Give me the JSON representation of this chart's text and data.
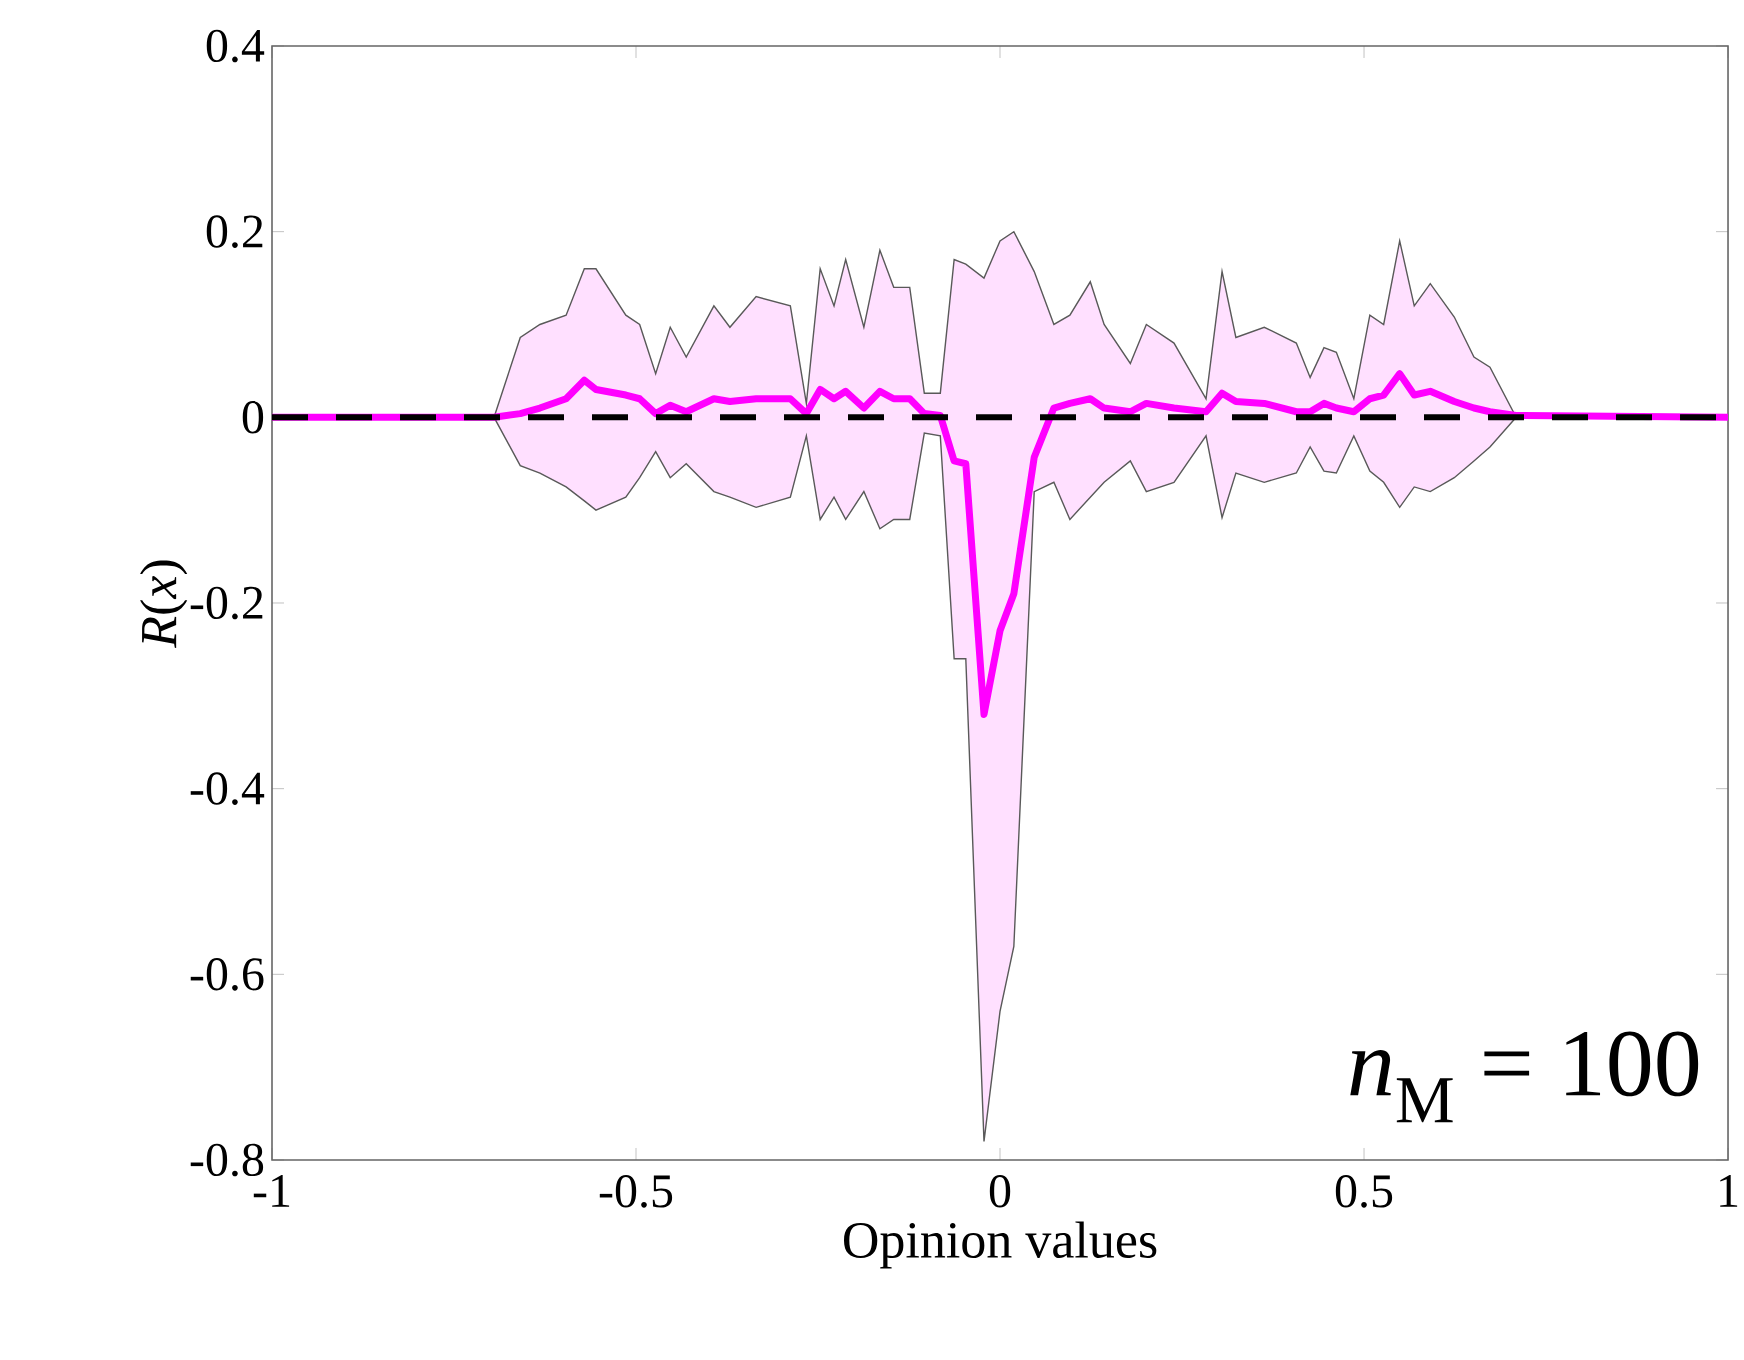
{
  "chart_data": {
    "type": "line",
    "xlabel": "Opinion values",
    "ylabel": "*R*(*x*)",
    "xlim": [
      -1,
      1
    ],
    "xticks": [
      -1,
      -0.5,
      0,
      0.5,
      1
    ],
    "ylim": [
      -0.8,
      0.4
    ],
    "yticks": [
      -0.8,
      -0.6,
      -0.4,
      -0.2,
      0,
      0.2,
      0.4
    ],
    "ref_lines": [
      {
        "axis": "y",
        "value": 0,
        "color": "#000000",
        "line_style": "dashed"
      }
    ],
    "annotations": [
      "*n*$_{M}$ = 100"
    ],
    "series": [
      {
        "color": "#ff00ff",
        "x": [
          -1,
          -0.695,
          -0.659,
          -0.632,
          -0.596,
          -0.571,
          -0.555,
          -0.514,
          -0.495,
          -0.473,
          -0.453,
          -0.431,
          -0.393,
          -0.371,
          -0.335,
          -0.288,
          -0.266,
          -0.247,
          -0.228,
          -0.212,
          -0.187,
          -0.165,
          -0.146,
          -0.124,
          -0.104,
          -0.082,
          -0.063,
          -0.047,
          -0.022,
          0,
          0.019,
          0.047,
          0.074,
          0.096,
          0.124,
          0.143,
          0.179,
          0.201,
          0.239,
          0.283,
          0.305,
          0.324,
          0.363,
          0.407,
          0.426,
          0.445,
          0.462,
          0.486,
          0.508,
          0.527,
          0.549,
          0.569,
          0.591,
          0.624,
          0.651,
          0.673,
          0.709,
          1
        ],
        "values": [
          0,
          0,
          0.004,
          0.01,
          0.02,
          0.04,
          0.03,
          0.024,
          0.02,
          0.004,
          0.013,
          0.006,
          0.02,
          0.017,
          0.02,
          0.02,
          0.004,
          0.03,
          0.02,
          0.028,
          0.01,
          0.028,
          0.02,
          0.02,
          0.004,
          0.002,
          -0.047,
          -0.05,
          -0.32,
          -0.23,
          -0.19,
          -0.043,
          0.01,
          0.015,
          0.02,
          0.01,
          0.006,
          0.015,
          0.01,
          0.006,
          0.026,
          0.017,
          0.015,
          0.006,
          0.006,
          0.015,
          0.01,
          0.006,
          0.02,
          0.024,
          0.047,
          0.024,
          0.028,
          0.017,
          0.01,
          0.006,
          0.002,
          0
        ],
        "upper": [
          0,
          0,
          0.086,
          0.1,
          0.11,
          0.16,
          0.16,
          0.11,
          0.1,
          0.047,
          0.097,
          0.065,
          0.12,
          0.097,
          0.13,
          0.12,
          0.015,
          0.16,
          0.12,
          0.17,
          0.097,
          0.18,
          0.14,
          0.14,
          0.026,
          0.026,
          0.17,
          0.165,
          0.15,
          0.19,
          0.2,
          0.157,
          0.1,
          0.11,
          0.146,
          0.1,
          0.058,
          0.1,
          0.08,
          0.02,
          0.157,
          0.086,
          0.097,
          0.08,
          0.043,
          0.075,
          0.07,
          0.02,
          0.11,
          0.1,
          0.19,
          0.12,
          0.144,
          0.108,
          0.065,
          0.054,
          0,
          0
        ],
        "lower": [
          0,
          0,
          -0.052,
          -0.06,
          -0.075,
          -0.09,
          -0.1,
          -0.086,
          -0.065,
          -0.037,
          -0.065,
          -0.05,
          -0.08,
          -0.086,
          -0.097,
          -0.086,
          -0.02,
          -0.11,
          -0.086,
          -0.11,
          -0.08,
          -0.12,
          -0.11,
          -0.11,
          -0.017,
          -0.02,
          -0.26,
          -0.26,
          -0.78,
          -0.64,
          -0.57,
          -0.08,
          -0.07,
          -0.11,
          -0.086,
          -0.07,
          -0.047,
          -0.08,
          -0.07,
          -0.02,
          -0.108,
          -0.06,
          -0.07,
          -0.06,
          -0.032,
          -0.058,
          -0.06,
          -0.02,
          -0.058,
          -0.07,
          -0.097,
          -0.075,
          -0.08,
          -0.065,
          -0.047,
          -0.032,
          0,
          0
        ]
      }
    ]
  }
}
